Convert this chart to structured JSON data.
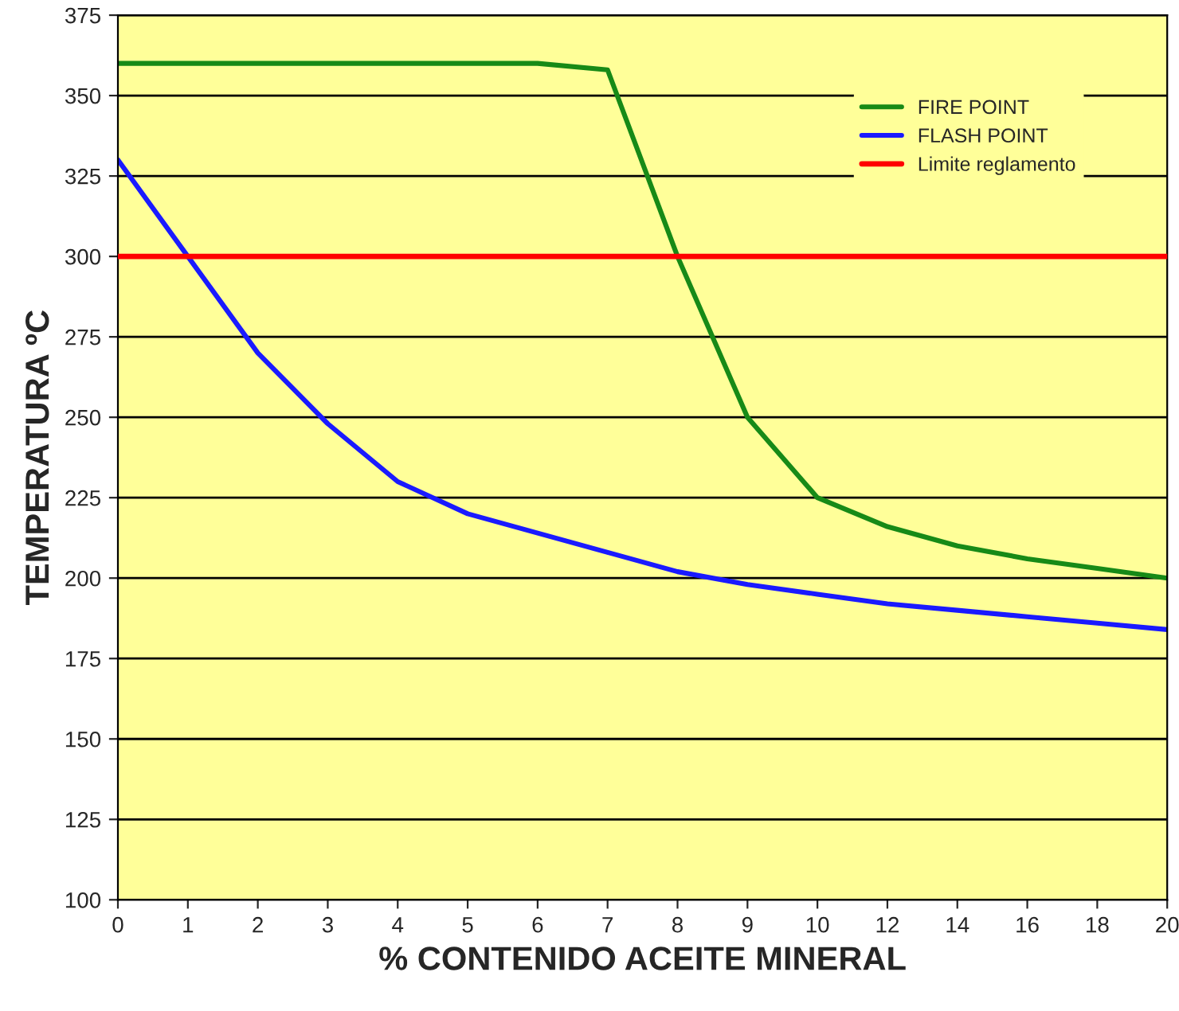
{
  "chart_data": {
    "type": "line",
    "xlabel": "% CONTENIDO ACEITE MINERAL",
    "ylabel": "TEMPERATURA ºC",
    "categories": [
      "0",
      "1",
      "2",
      "3",
      "4",
      "5",
      "6",
      "7",
      "8",
      "9",
      "10",
      "12",
      "14",
      "16",
      "18",
      "20"
    ],
    "series": [
      {
        "name": "FIRE POINT",
        "color": "#178a17",
        "values": [
          360,
          360,
          360,
          360,
          360,
          360,
          360,
          358,
          300,
          250,
          225,
          216,
          210,
          206,
          203,
          200
        ]
      },
      {
        "name": "FLASH POINT",
        "color": "#1a1aff",
        "values": [
          330,
          300,
          270,
          248,
          230,
          220,
          214,
          208,
          202,
          198,
          195,
          192,
          190,
          188,
          186,
          184
        ]
      }
    ],
    "ref_lines": [
      {
        "axis": "y",
        "value": 300,
        "label": "Limite reglamento",
        "color": "#ff0000"
      }
    ],
    "ylim": [
      100,
      375
    ],
    "yticks": [
      100,
      125,
      150,
      175,
      200,
      225,
      250,
      275,
      300,
      325,
      350,
      375
    ],
    "grid": "y",
    "legend": "top right",
    "marker": "none",
    "line_style": "solid"
  }
}
